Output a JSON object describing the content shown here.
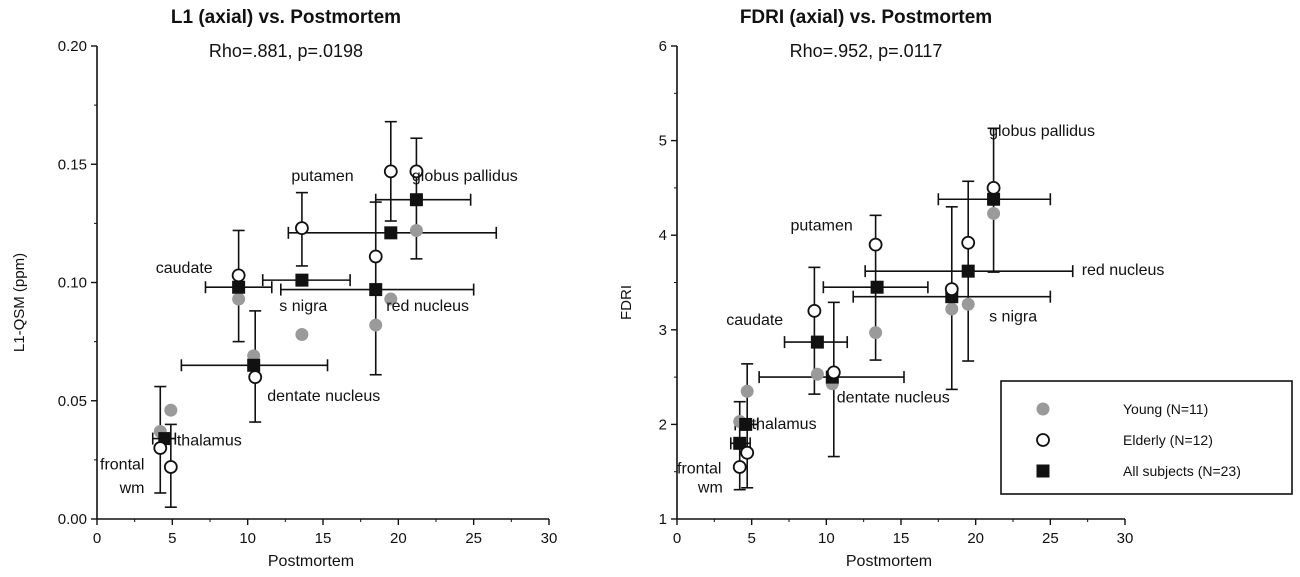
{
  "chart_data": [
    {
      "type": "scatter",
      "title": "L1 (axial) vs. Postmortem",
      "subtitle": "Rho=.881, p=.0198",
      "xlabel": "Postmortem",
      "ylabel": "L1-QSM (ppm)",
      "xlim": [
        0,
        30
      ],
      "ylim": [
        0,
        0.2
      ],
      "xticks": [
        "0",
        "5",
        "10",
        "15",
        "20",
        "25",
        "30"
      ],
      "yticks": [
        "0.00",
        "0.05",
        "0.10",
        "0.15",
        "0.20"
      ],
      "series": [
        {
          "name": "Young (N=11)",
          "marker": "gray-circle",
          "points": [
            {
              "x": 4.2,
              "y": 0.037
            },
            {
              "x": 4.9,
              "y": 0.046
            },
            {
              "x": 9.4,
              "y": 0.093
            },
            {
              "x": 10.4,
              "y": 0.069
            },
            {
              "x": 13.6,
              "y": 0.078
            },
            {
              "x": 18.5,
              "y": 0.082
            },
            {
              "x": 19.5,
              "y": 0.093
            },
            {
              "x": 21.2,
              "y": 0.122
            }
          ]
        },
        {
          "name": "Elderly (N=12)",
          "marker": "open-circle",
          "points": [
            {
              "x": 4.2,
              "y": 0.03,
              "yerr": [
                0.011,
                0.056
              ]
            },
            {
              "x": 4.9,
              "y": 0.022,
              "yerr": [
                0.005,
                0.04
              ]
            },
            {
              "x": 9.4,
              "y": 0.103,
              "yerr": [
                0.075,
                0.122
              ]
            },
            {
              "x": 10.5,
              "y": 0.06,
              "yerr": [
                0.041,
                0.088
              ]
            },
            {
              "x": 13.6,
              "y": 0.123,
              "yerr": [
                0.107,
                0.138
              ]
            },
            {
              "x": 18.5,
              "y": 0.111,
              "yerr": [
                0.061,
                0.134
              ]
            },
            {
              "x": 19.5,
              "y": 0.147,
              "yerr": [
                0.126,
                0.168
              ]
            },
            {
              "x": 21.2,
              "y": 0.147,
              "yerr": [
                0.11,
                0.161
              ]
            }
          ]
        },
        {
          "name": "All subjects (N=23)",
          "marker": "filled-square",
          "points": [
            {
              "x": 4.5,
              "y": 0.034,
              "xerr": [
                3.7,
                5.2
              ]
            },
            {
              "x": 9.4,
              "y": 0.098,
              "xerr": [
                7.2,
                11.6
              ]
            },
            {
              "x": 10.4,
              "y": 0.065,
              "xerr": [
                5.6,
                15.3
              ]
            },
            {
              "x": 13.6,
              "y": 0.101,
              "xerr": [
                11.0,
                16.8
              ]
            },
            {
              "x": 18.5,
              "y": 0.097,
              "xerr": [
                12.2,
                25.0
              ]
            },
            {
              "x": 19.5,
              "y": 0.121,
              "xerr": [
                12.7,
                26.5
              ]
            },
            {
              "x": 21.2,
              "y": 0.135,
              "xerr": [
                18.5,
                24.8
              ]
            }
          ]
        }
      ],
      "annotations": [
        {
          "text": "putamen",
          "x": 12.9,
          "y": 0.143
        },
        {
          "text": "globus pallidus",
          "x": 20.9,
          "y": 0.143
        },
        {
          "text": "caudate",
          "x": 3.9,
          "y": 0.104
        },
        {
          "text": "s nigra",
          "x": 12.1,
          "y": 0.088
        },
        {
          "text": "red nucleus",
          "x": 19.2,
          "y": 0.088
        },
        {
          "text": "dentate nucleus",
          "x": 11.3,
          "y": 0.05
        },
        {
          "text": "thalamus",
          "x": 5.3,
          "y": 0.031
        },
        {
          "text": "frontal",
          "x": 0.2,
          "y": 0.021
        },
        {
          "text": "wm",
          "x": 1.5,
          "y": 0.011
        }
      ]
    },
    {
      "type": "scatter",
      "title": "FDRI (axial) vs. Postmortem",
      "subtitle": "Rho=.952, p=.0117",
      "xlabel": "Postmortem",
      "ylabel": "FDRI",
      "xlim": [
        0,
        30
      ],
      "ylim": [
        1,
        6
      ],
      "xticks": [
        "0",
        "5",
        "10",
        "15",
        "20",
        "25",
        "30"
      ],
      "yticks": [
        "1",
        "2",
        "3",
        "4",
        "5",
        "6"
      ],
      "legend_position": "bottom-right",
      "series": [
        {
          "name": "Young (N=11)",
          "marker": "gray-circle",
          "points": [
            {
              "x": 4.2,
              "y": 2.03
            },
            {
              "x": 4.7,
              "y": 2.35
            },
            {
              "x": 9.4,
              "y": 2.53
            },
            {
              "x": 10.4,
              "y": 2.43
            },
            {
              "x": 13.3,
              "y": 2.97
            },
            {
              "x": 18.4,
              "y": 3.22
            },
            {
              "x": 19.5,
              "y": 3.27
            },
            {
              "x": 21.2,
              "y": 4.23
            }
          ]
        },
        {
          "name": "Elderly (N=12)",
          "marker": "open-circle",
          "points": [
            {
              "x": 4.2,
              "y": 1.55,
              "yerr": [
                1.31,
                2.24
              ]
            },
            {
              "x": 4.7,
              "y": 1.7,
              "yerr": [
                1.33,
                2.64
              ]
            },
            {
              "x": 9.2,
              "y": 3.2,
              "yerr": [
                2.32,
                3.66
              ]
            },
            {
              "x": 10.5,
              "y": 2.55,
              "yerr": [
                1.66,
                3.29
              ]
            },
            {
              "x": 13.3,
              "y": 3.9,
              "yerr": [
                2.68,
                4.21
              ]
            },
            {
              "x": 18.4,
              "y": 3.43,
              "yerr": [
                2.37,
                4.3
              ]
            },
            {
              "x": 19.5,
              "y": 3.92,
              "yerr": [
                2.67,
                4.57
              ]
            },
            {
              "x": 21.2,
              "y": 4.5,
              "yerr": [
                3.61,
                5.13
              ]
            }
          ]
        },
        {
          "name": "All subjects (N=23)",
          "marker": "filled-square",
          "points": [
            {
              "x": 4.2,
              "y": 1.8,
              "xerr": [
                3.6,
                4.9
              ]
            },
            {
              "x": 4.6,
              "y": 2.0,
              "xerr": [
                3.9,
                5.4
              ]
            },
            {
              "x": 9.4,
              "y": 2.87,
              "xerr": [
                7.2,
                11.4
              ]
            },
            {
              "x": 10.4,
              "y": 2.5,
              "xerr": [
                5.5,
                15.2
              ]
            },
            {
              "x": 13.4,
              "y": 3.45,
              "xerr": [
                9.8,
                16.8
              ]
            },
            {
              "x": 18.4,
              "y": 3.35,
              "xerr": [
                11.8,
                25.0
              ]
            },
            {
              "x": 19.5,
              "y": 3.62,
              "xerr": [
                12.6,
                26.5
              ]
            },
            {
              "x": 21.2,
              "y": 4.38,
              "xerr": [
                17.5,
                25.0
              ]
            }
          ]
        }
      ],
      "annotations": [
        {
          "text": "putamen",
          "x": 7.6,
          "y": 4.05
        },
        {
          "text": "globus pallidus",
          "x": 20.9,
          "y": 5.05
        },
        {
          "text": "red nucleus",
          "x": 27.1,
          "y": 3.58
        },
        {
          "text": "caudate",
          "x": 3.3,
          "y": 3.05
        },
        {
          "text": "s nigra",
          "x": 20.9,
          "y": 3.09
        },
        {
          "text": "dentate nucleus",
          "x": 10.7,
          "y": 2.23
        },
        {
          "text": "thalamus",
          "x": 5.0,
          "y": 1.95
        },
        {
          "text": "frontal",
          "x": 0.0,
          "y": 1.48
        },
        {
          "text": "wm",
          "x": 1.4,
          "y": 1.28
        }
      ]
    }
  ]
}
